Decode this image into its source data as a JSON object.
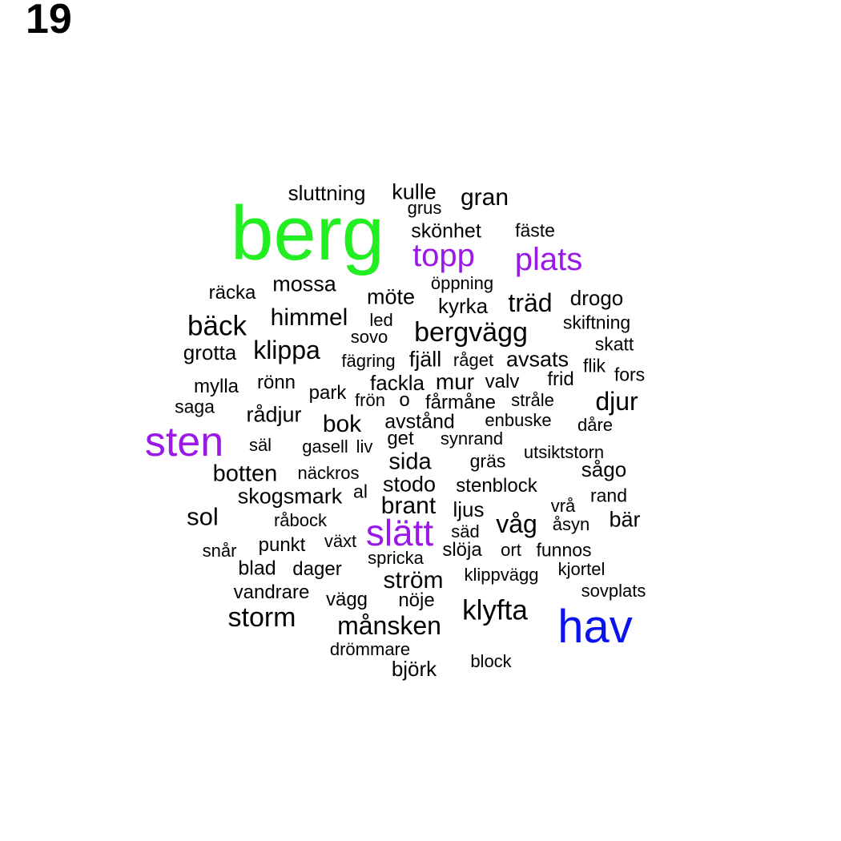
{
  "page_number": "19",
  "colors": {
    "default": "#000000",
    "green": "#22ee22",
    "purple": "#9a18e8",
    "blue": "#0a12ee"
  },
  "words": [
    {
      "text": "berg",
      "color": "green"
    },
    {
      "text": "sten",
      "color": "purple"
    },
    {
      "text": "hav",
      "color": "blue"
    },
    {
      "text": "slätt",
      "color": "purple"
    },
    {
      "text": "topp",
      "color": "purple"
    },
    {
      "text": "plats",
      "color": "purple"
    },
    {
      "text": "sluttning"
    },
    {
      "text": "kulle"
    },
    {
      "text": "gran"
    },
    {
      "text": "grus"
    },
    {
      "text": "skönhet"
    },
    {
      "text": "fäste"
    },
    {
      "text": "öppning"
    },
    {
      "text": "räcka"
    },
    {
      "text": "mossa"
    },
    {
      "text": "möte"
    },
    {
      "text": "kyrka"
    },
    {
      "text": "träd"
    },
    {
      "text": "drogo"
    },
    {
      "text": "bäck"
    },
    {
      "text": "himmel"
    },
    {
      "text": "led"
    },
    {
      "text": "bergvägg"
    },
    {
      "text": "skiftning"
    },
    {
      "text": "sovo"
    },
    {
      "text": "skatt"
    },
    {
      "text": "grotta"
    },
    {
      "text": "klippa"
    },
    {
      "text": "fägring"
    },
    {
      "text": "fjäll"
    },
    {
      "text": "råget"
    },
    {
      "text": "avsats"
    },
    {
      "text": "flik"
    },
    {
      "text": "fors"
    },
    {
      "text": "rönn"
    },
    {
      "text": "fackla"
    },
    {
      "text": "mur"
    },
    {
      "text": "valv"
    },
    {
      "text": "frid"
    },
    {
      "text": "mylla"
    },
    {
      "text": "park"
    },
    {
      "text": "frön"
    },
    {
      "text": "o"
    },
    {
      "text": "fårmåne"
    },
    {
      "text": "stråle"
    },
    {
      "text": "djur"
    },
    {
      "text": "saga"
    },
    {
      "text": "rådjur"
    },
    {
      "text": "bok"
    },
    {
      "text": "avstånd"
    },
    {
      "text": "enbuske"
    },
    {
      "text": "dåre"
    },
    {
      "text": "get"
    },
    {
      "text": "synrand"
    },
    {
      "text": "säl"
    },
    {
      "text": "gasell"
    },
    {
      "text": "liv"
    },
    {
      "text": "utsiktstorn"
    },
    {
      "text": "sida"
    },
    {
      "text": "gräs"
    },
    {
      "text": "sågo"
    },
    {
      "text": "botten"
    },
    {
      "text": "näckros"
    },
    {
      "text": "stodo"
    },
    {
      "text": "stenblock"
    },
    {
      "text": "skogsmark"
    },
    {
      "text": "al"
    },
    {
      "text": "rand"
    },
    {
      "text": "brant"
    },
    {
      "text": "ljus"
    },
    {
      "text": "vrå"
    },
    {
      "text": "sol"
    },
    {
      "text": "råbock"
    },
    {
      "text": "våg"
    },
    {
      "text": "bär"
    },
    {
      "text": "åsyn"
    },
    {
      "text": "säd"
    },
    {
      "text": "snår"
    },
    {
      "text": "punkt"
    },
    {
      "text": "växt"
    },
    {
      "text": "slöja"
    },
    {
      "text": "ort"
    },
    {
      "text": "funnos"
    },
    {
      "text": "spricka"
    },
    {
      "text": "blad"
    },
    {
      "text": "dager"
    },
    {
      "text": "klippvägg"
    },
    {
      "text": "kjortel"
    },
    {
      "text": "ström"
    },
    {
      "text": "vandrare"
    },
    {
      "text": "sovplats"
    },
    {
      "text": "vägg"
    },
    {
      "text": "nöje"
    },
    {
      "text": "storm"
    },
    {
      "text": "klyfta"
    },
    {
      "text": "månsken"
    },
    {
      "text": "drömmare"
    },
    {
      "text": "björk"
    },
    {
      "text": "block"
    }
  ]
}
